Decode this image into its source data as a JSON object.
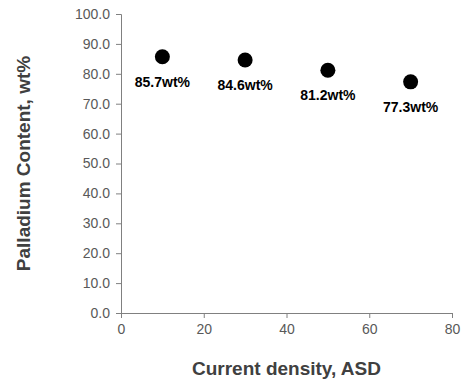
{
  "chart_data": {
    "type": "scatter",
    "x_label": "Current density, ASD",
    "y_label": "Palladium Content, wt%",
    "x": [
      10,
      30,
      50,
      70
    ],
    "values": [
      85.7,
      84.6,
      81.2,
      77.3
    ],
    "value_labels": [
      "85.7wt%",
      "84.6wt%",
      "81.2wt%",
      "77.3wt%"
    ],
    "data_labels": true,
    "color": "#000000",
    "marker": "circle",
    "xlim": [
      0,
      80
    ],
    "xticks": [
      0,
      20,
      40,
      60,
      80
    ],
    "ylim": [
      0,
      100
    ],
    "yticks": [
      {
        "value": 0,
        "label": "0.0"
      },
      {
        "value": 10,
        "label": "10.0"
      },
      {
        "value": 20,
        "label": "20.0"
      },
      {
        "value": 30,
        "label": "30.0"
      },
      {
        "value": 40,
        "label": "40.0"
      },
      {
        "value": 50,
        "label": "50.0"
      },
      {
        "value": 60,
        "label": "60.0"
      },
      {
        "value": 70,
        "label": "70.0"
      },
      {
        "value": 80,
        "label": "80.0"
      },
      {
        "value": 90,
        "label": "90.0"
      },
      {
        "value": 100,
        "label": "100.0"
      }
    ],
    "grid": false
  }
}
